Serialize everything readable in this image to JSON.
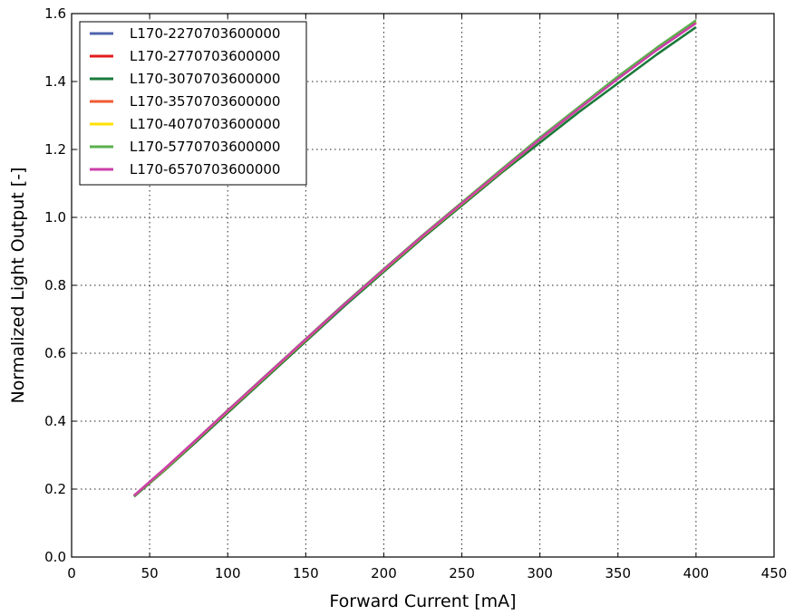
{
  "chart_data": {
    "type": "line",
    "title": "",
    "xlabel": "Forward Current [mA]",
    "ylabel": "Normalized Light Output [-]",
    "xlim": [
      0,
      450
    ],
    "ylim": [
      0.0,
      1.6
    ],
    "xticks": [
      0,
      50,
      100,
      150,
      200,
      250,
      300,
      350,
      400,
      450
    ],
    "xtick_labels": [
      "0",
      "50",
      "100",
      "150",
      "200",
      "250",
      "300",
      "350",
      "400",
      "450"
    ],
    "yticks": [
      0.0,
      0.2,
      0.4,
      0.6,
      0.8,
      1.0,
      1.2,
      1.4,
      1.6
    ],
    "ytick_labels": [
      "0.0",
      "0.2",
      "0.4",
      "0.6",
      "0.8",
      "1.0",
      "1.2",
      "1.4",
      "1.6"
    ],
    "grid": true,
    "legend_position": "top-left",
    "x": [
      40,
      60,
      80,
      100,
      125,
      150,
      175,
      200,
      225,
      250,
      275,
      300,
      325,
      350,
      375,
      400
    ],
    "series": [
      {
        "name": "L170-2270703600000",
        "color": "#4e63ae",
        "values": [
          0.18,
          0.26,
          0.345,
          0.43,
          0.535,
          0.64,
          0.745,
          0.845,
          0.945,
          1.04,
          1.135,
          1.23,
          1.32,
          1.41,
          1.495,
          1.575
        ]
      },
      {
        "name": "L170-2770703600000",
        "color": "#e31a1c",
        "values": [
          0.18,
          0.26,
          0.345,
          0.43,
          0.535,
          0.64,
          0.745,
          0.845,
          0.945,
          1.04,
          1.135,
          1.23,
          1.32,
          1.41,
          1.495,
          1.575
        ]
      },
      {
        "name": "L170-3070703600000",
        "color": "#1a7a3a",
        "values": [
          0.178,
          0.257,
          0.34,
          0.425,
          0.53,
          0.635,
          0.74,
          0.84,
          0.94,
          1.035,
          1.13,
          1.22,
          1.31,
          1.395,
          1.48,
          1.56
        ]
      },
      {
        "name": "L170-3570703600000",
        "color": "#f05a32",
        "values": [
          0.18,
          0.26,
          0.345,
          0.43,
          0.535,
          0.64,
          0.745,
          0.845,
          0.945,
          1.04,
          1.135,
          1.23,
          1.32,
          1.41,
          1.495,
          1.575
        ]
      },
      {
        "name": "L170-4070703600000",
        "color": "#ffe000",
        "values": [
          0.18,
          0.26,
          0.345,
          0.43,
          0.535,
          0.64,
          0.745,
          0.845,
          0.945,
          1.04,
          1.135,
          1.23,
          1.32,
          1.41,
          1.495,
          1.575
        ]
      },
      {
        "name": "L170-5770703600000",
        "color": "#5bb04c",
        "values": [
          0.18,
          0.261,
          0.346,
          0.432,
          0.537,
          0.642,
          0.747,
          0.848,
          0.948,
          1.044,
          1.14,
          1.235,
          1.325,
          1.415,
          1.5,
          1.58
        ]
      },
      {
        "name": "L170-6570703600000",
        "color": "#cc3fa8",
        "values": [
          0.181,
          0.262,
          0.346,
          0.431,
          0.536,
          0.641,
          0.745,
          0.846,
          0.946,
          1.041,
          1.136,
          1.23,
          1.32,
          1.408,
          1.493,
          1.572
        ]
      }
    ]
  }
}
